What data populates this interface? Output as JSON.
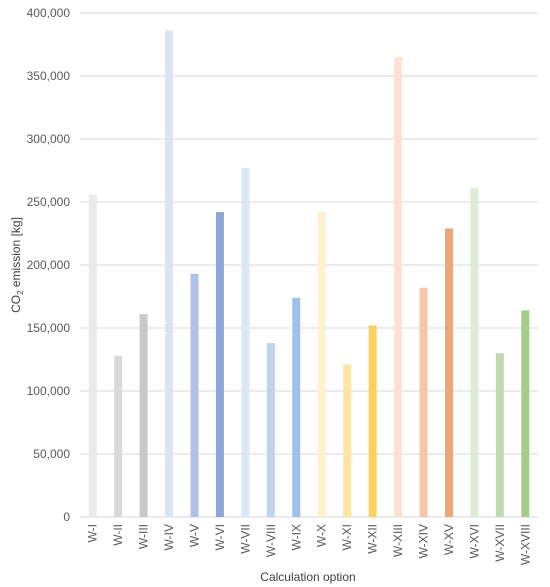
{
  "chart_data": {
    "type": "bar",
    "xlabel": "Calculation option",
    "ylabel_pre": "CO",
    "ylabel_sub": "2",
    "ylabel_post": " emission [kg]",
    "ylim": [
      0,
      400000
    ],
    "yticks": [
      "0",
      "50,000",
      "100,000",
      "150,000",
      "200,000",
      "250,000",
      "300,000",
      "350,000",
      "400,000"
    ],
    "grid": true,
    "categories": [
      "W-I",
      "W-II",
      "W-III",
      "W-IV",
      "W-V",
      "W-VI",
      "W-VII",
      "W-VIII",
      "W-IX",
      "W-X",
      "W-XI",
      "W-XII",
      "W-XIII",
      "W-XIV",
      "W-XV",
      "W-XVI",
      "W-XVII",
      "W-XVIII"
    ],
    "values": [
      256000,
      128000,
      161000,
      386000,
      193000,
      242000,
      277000,
      138000,
      174000,
      242000,
      121000,
      152000,
      365000,
      182000,
      229000,
      261000,
      130000,
      164000
    ],
    "colors": [
      "#ebebeb",
      "#d9d9d9",
      "#c9c9c9",
      "#dbe4f6",
      "#adc2e6",
      "#8ea7d9",
      "#dce6f6",
      "#bed4ea",
      "#9fc1e6",
      "#fdf2cf",
      "#fde6a3",
      "#f9d25e",
      "#fce2d4",
      "#f7c5a8",
      "#eda57a",
      "#deecd5",
      "#c1dbb0",
      "#a6cc8a"
    ]
  }
}
